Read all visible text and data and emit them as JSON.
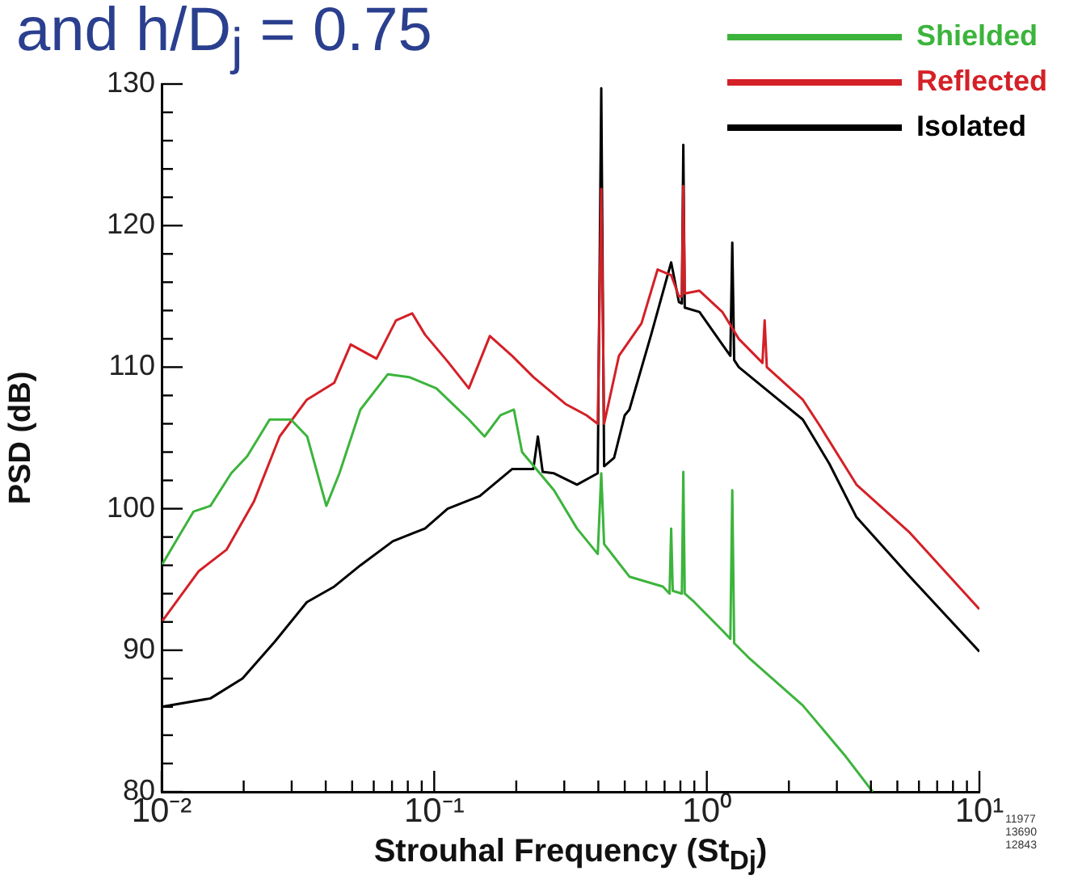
{
  "chart_data": {
    "type": "line",
    "title": "and h/D$_{j}$ = 0.75",
    "xlabel": "Strouhal Frequency (St$_{Dj}$)",
    "ylabel": "PSD (dB)",
    "log": "x",
    "legend": "top right",
    "xlim": [
      0.01,
      10
    ],
    "ylim": [
      80,
      130
    ],
    "xticks": [
      {
        "value": 0.01,
        "label": "10⁻²"
      },
      {
        "value": 0.02,
        "label": null
      },
      {
        "value": 0.03,
        "label": null
      },
      {
        "value": 0.04,
        "label": null
      },
      {
        "value": 0.05,
        "label": null
      },
      {
        "value": 0.06,
        "label": null
      },
      {
        "value": 0.07,
        "label": null
      },
      {
        "value": 0.08,
        "label": null
      },
      {
        "value": 0.09,
        "label": null
      },
      {
        "value": 0.1,
        "label": "10⁻¹"
      },
      {
        "value": 0.2,
        "label": null
      },
      {
        "value": 0.3,
        "label": null
      },
      {
        "value": 0.4,
        "label": null
      },
      {
        "value": 0.5,
        "label": null
      },
      {
        "value": 0.6,
        "label": null
      },
      {
        "value": 0.7,
        "label": null
      },
      {
        "value": 0.8,
        "label": null
      },
      {
        "value": 0.9,
        "label": null
      },
      {
        "value": 1,
        "label": "10⁰"
      },
      {
        "value": 2,
        "label": null
      },
      {
        "value": 3,
        "label": null
      },
      {
        "value": 4,
        "label": null
      },
      {
        "value": 5,
        "label": null
      },
      {
        "value": 6,
        "label": null
      },
      {
        "value": 7,
        "label": null
      },
      {
        "value": 8,
        "label": null
      },
      {
        "value": 9,
        "label": null
      },
      {
        "value": 10,
        "label": "10¹"
      }
    ],
    "yticks": [
      80,
      {
        "value": 82,
        "label": null
      },
      {
        "value": 84,
        "label": null
      },
      {
        "value": 86,
        "label": null
      },
      {
        "value": 88,
        "label": null
      },
      90,
      {
        "value": 92,
        "label": null
      },
      {
        "value": 94,
        "label": null
      },
      {
        "value": 96,
        "label": null
      },
      {
        "value": 98,
        "label": null
      },
      100,
      {
        "value": 102,
        "label": null
      },
      {
        "value": 104,
        "label": null
      },
      {
        "value": 106,
        "label": null
      },
      {
        "value": 108,
        "label": null
      },
      110,
      {
        "value": 112,
        "label": null
      },
      {
        "value": 114,
        "label": null
      },
      {
        "value": 116,
        "label": null
      },
      {
        "value": 118,
        "label": null
      },
      120,
      {
        "value": 122,
        "label": null
      },
      {
        "value": 124,
        "label": null
      },
      {
        "value": 126,
        "label": null
      },
      {
        "value": 128,
        "label": null
      },
      130
    ],
    "series": [
      {
        "name": "Shielded",
        "color": "#3cb43c",
        "x": [
          0.01,
          0.0131,
          0.0151,
          0.018,
          0.0206,
          0.0249,
          0.0298,
          0.0342,
          0.0402,
          0.0449,
          0.0536,
          0.0676,
          0.0808,
          0.1018,
          0.134,
          0.153,
          0.175,
          0.196,
          0.21,
          0.275,
          0.334,
          0.398,
          0.41,
          0.42,
          0.52,
          0.69,
          0.73,
          0.74,
          0.75,
          0.81,
          0.82,
          0.83,
          0.9,
          1.14,
          1.22,
          1.24,
          1.26,
          1.42,
          2.25,
          3.2,
          4.06
        ],
        "values": [
          96,
          99.8,
          100.2,
          102.5,
          103.7,
          106.3,
          106.3,
          105.1,
          100.2,
          102.5,
          107,
          109.5,
          109.3,
          108.5,
          106.3,
          105.1,
          106.6,
          107,
          104,
          101.3,
          98.6,
          96.8,
          102.5,
          97.5,
          95.2,
          94.5,
          94,
          98.6,
          94.2,
          94,
          102.6,
          94,
          93.4,
          91.4,
          90.8,
          101.3,
          90.5,
          89.5,
          86.1,
          82.6,
          80
        ]
      },
      {
        "name": "Reflected",
        "color": "#d42027",
        "x": [
          0.01,
          0.0137,
          0.0173,
          0.0218,
          0.0271,
          0.0341,
          0.043,
          0.0494,
          0.0614,
          0.0724,
          0.083,
          0.0925,
          0.112,
          0.134,
          0.16,
          0.193,
          0.231,
          0.303,
          0.362,
          0.398,
          0.41,
          0.42,
          0.476,
          0.576,
          0.66,
          0.74,
          0.79,
          0.81,
          0.82,
          0.83,
          0.94,
          1.14,
          1.31,
          1.6,
          1.63,
          1.66,
          2.25,
          2.59,
          3.54,
          5.56,
          10
        ],
        "values": [
          92,
          95.6,
          97.1,
          100.5,
          105.1,
          107.7,
          108.9,
          111.6,
          110.6,
          113.3,
          113.8,
          112.3,
          110.4,
          108.5,
          112.2,
          110.8,
          109.3,
          107.4,
          106.6,
          106,
          122.6,
          106,
          110.8,
          113.1,
          116.9,
          116.5,
          115,
          115,
          122.8,
          115.2,
          115.4,
          113.9,
          112,
          110.3,
          113.3,
          110,
          107.7,
          105.9,
          101.7,
          98.3,
          92.9
        ]
      },
      {
        "name": "Isolated",
        "color": "#000000",
        "x": [
          0.01,
          0.0151,
          0.0198,
          0.026,
          0.0341,
          0.043,
          0.0536,
          0.0705,
          0.0925,
          0.112,
          0.147,
          0.193,
          0.231,
          0.24,
          0.25,
          0.275,
          0.334,
          0.398,
          0.41,
          0.42,
          0.457,
          0.5,
          0.52,
          0.625,
          0.74,
          0.79,
          0.81,
          0.82,
          0.83,
          0.94,
          1.14,
          1.22,
          1.24,
          1.26,
          1.31,
          1.63,
          2.25,
          2.81,
          3.54,
          5.56,
          10
        ],
        "values": [
          86,
          86.6,
          88,
          90.6,
          93.4,
          94.5,
          96,
          97.7,
          98.6,
          100,
          100.9,
          102.8,
          102.8,
          105.1,
          102.6,
          102.5,
          101.7,
          102.5,
          129.7,
          103,
          103.6,
          106.6,
          107,
          112.3,
          117.4,
          114.6,
          114.5,
          125.7,
          114.2,
          113.9,
          111.6,
          110.8,
          118.8,
          110.5,
          110,
          108.5,
          106.3,
          103.2,
          99.4,
          95.2,
          89.9
        ]
      }
    ],
    "annotations": [
      "11977",
      "13690",
      "12843"
    ]
  }
}
